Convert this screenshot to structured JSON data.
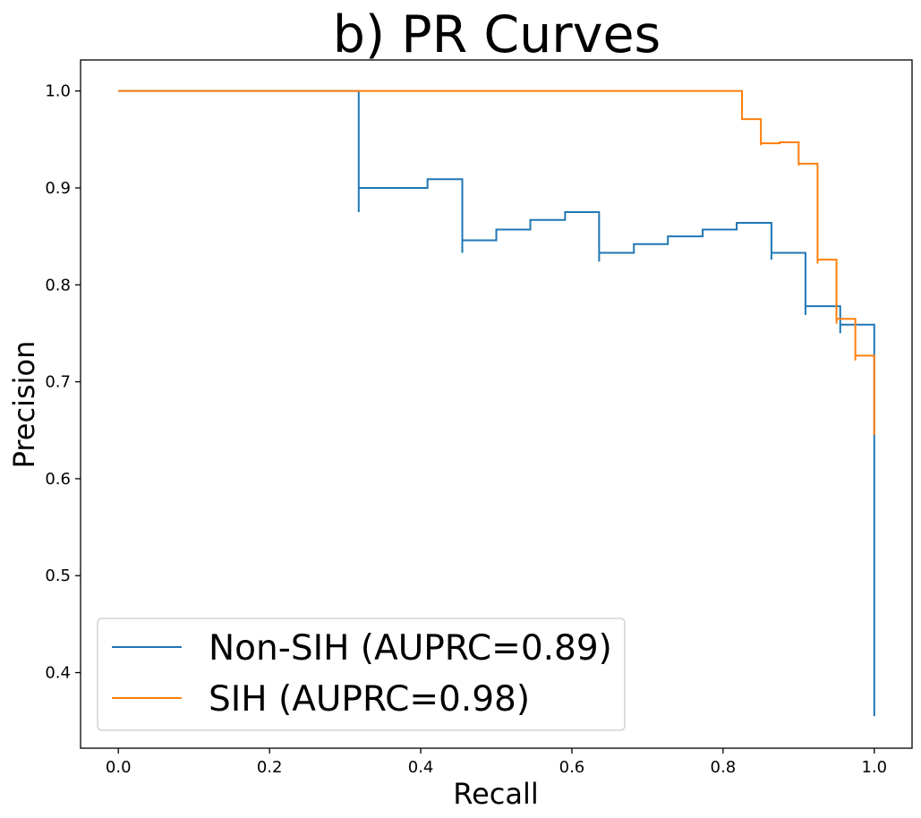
{
  "chart_data": {
    "type": "line",
    "title": "b) PR Curves",
    "xlabel": "Recall",
    "ylabel": "Precision",
    "xlim": [
      -0.05,
      1.05
    ],
    "ylim": [
      0.322,
      1.032
    ],
    "xticks": [
      0.0,
      0.2,
      0.4,
      0.6,
      0.8,
      1.0
    ],
    "xtick_labels": [
      "0.0",
      "0.2",
      "0.4",
      "0.6",
      "0.8",
      "1.0"
    ],
    "yticks": [
      0.4,
      0.5,
      0.6,
      0.7,
      0.8,
      0.9,
      1.0
    ],
    "ytick_labels": [
      "0.4",
      "0.5",
      "0.6",
      "0.7",
      "0.8",
      "0.9",
      "1.0"
    ],
    "grid": false,
    "legend_position": "lower-left",
    "series": [
      {
        "name": "Non-SIH (AUPRC=0.89)",
        "color": "#1f77b4",
        "step": "pre",
        "points": [
          [
            0.0,
            1.0
          ],
          [
            0.318,
            1.0
          ],
          [
            0.318,
            0.875
          ],
          [
            0.318,
            0.9
          ],
          [
            0.409,
            0.9
          ],
          [
            0.409,
            0.909
          ],
          [
            0.455,
            0.909
          ],
          [
            0.455,
            0.833
          ],
          [
            0.455,
            0.846
          ],
          [
            0.5,
            0.846
          ],
          [
            0.5,
            0.857
          ],
          [
            0.545,
            0.857
          ],
          [
            0.545,
            0.867
          ],
          [
            0.591,
            0.867
          ],
          [
            0.591,
            0.875
          ],
          [
            0.636,
            0.875
          ],
          [
            0.636,
            0.824
          ],
          [
            0.636,
            0.833
          ],
          [
            0.682,
            0.833
          ],
          [
            0.682,
            0.842
          ],
          [
            0.727,
            0.842
          ],
          [
            0.727,
            0.85
          ],
          [
            0.773,
            0.85
          ],
          [
            0.773,
            0.857
          ],
          [
            0.818,
            0.857
          ],
          [
            0.818,
            0.864
          ],
          [
            0.864,
            0.864
          ],
          [
            0.864,
            0.826
          ],
          [
            0.864,
            0.833
          ],
          [
            0.909,
            0.833
          ],
          [
            0.909,
            0.769
          ],
          [
            0.909,
            0.778
          ],
          [
            0.955,
            0.778
          ],
          [
            0.955,
            0.75
          ],
          [
            0.955,
            0.759
          ],
          [
            1.0,
            0.759
          ],
          [
            1.0,
            0.355
          ]
        ]
      },
      {
        "name": "SIH (AUPRC=0.98)",
        "color": "#ff7f0e",
        "step": "pre",
        "points": [
          [
            0.0,
            1.0
          ],
          [
            0.825,
            1.0
          ],
          [
            0.825,
            0.971
          ],
          [
            0.85,
            0.971
          ],
          [
            0.85,
            0.944
          ],
          [
            0.85,
            0.946
          ],
          [
            0.875,
            0.946
          ],
          [
            0.875,
            0.947
          ],
          [
            0.9,
            0.947
          ],
          [
            0.9,
            0.923
          ],
          [
            0.9,
            0.925
          ],
          [
            0.925,
            0.925
          ],
          [
            0.925,
            0.822
          ],
          [
            0.925,
            0.826
          ],
          [
            0.95,
            0.826
          ],
          [
            0.95,
            0.76
          ],
          [
            0.95,
            0.765
          ],
          [
            0.975,
            0.765
          ],
          [
            0.975,
            0.722
          ],
          [
            0.975,
            0.727
          ],
          [
            1.0,
            0.727
          ],
          [
            1.0,
            0.645
          ]
        ]
      }
    ]
  }
}
